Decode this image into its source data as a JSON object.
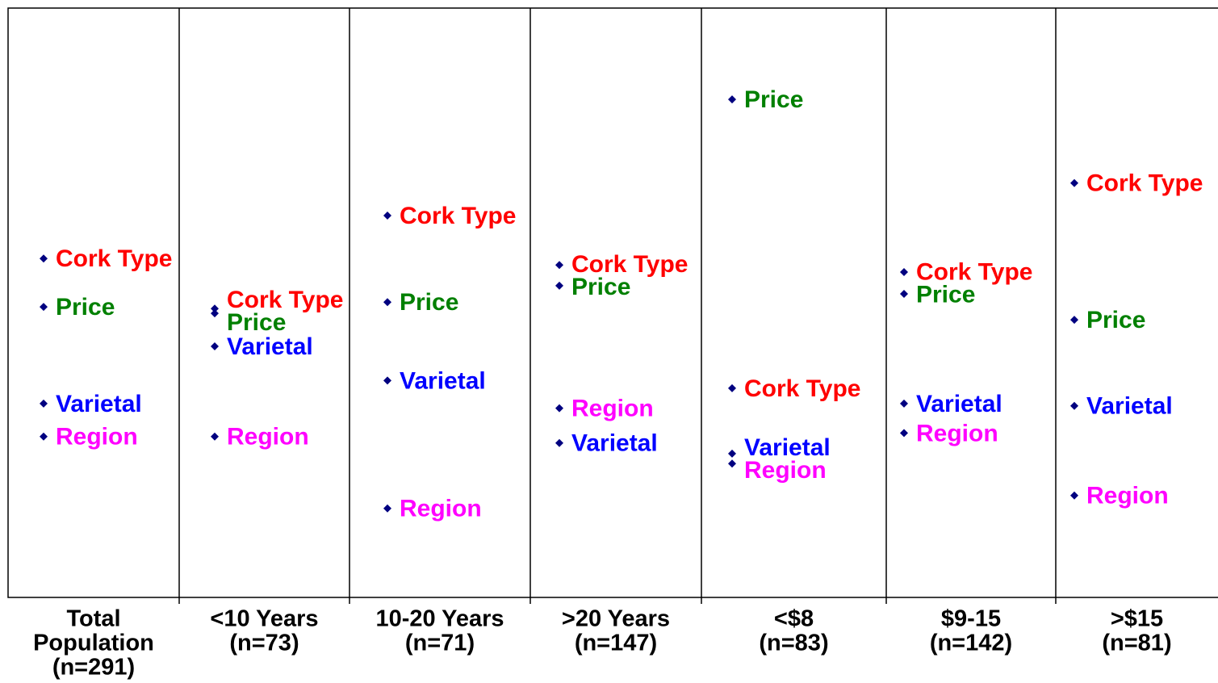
{
  "chart_data": {
    "type": "dot",
    "categories": [
      [
        "Total",
        "Population",
        "(n=291)"
      ],
      [
        "<10 Years",
        "(n=73)"
      ],
      [
        "10-20 Years",
        "(n=71)"
      ],
      [
        ">20 Years",
        "(n=147)"
      ],
      [
        "<$8",
        "(n=83)"
      ],
      [
        "$9-15",
        "(n=142)"
      ],
      [
        ">$15",
        "(n=81)"
      ]
    ],
    "series": [
      {
        "name": "Cork Type",
        "color": "#ff0000",
        "values": [
          57.5,
          49.0,
          64.8,
          56.4,
          35.5,
          55.2,
          70.3
        ]
      },
      {
        "name": "Price",
        "color": "#008000",
        "values": [
          49.3,
          48.2,
          50.1,
          52.9,
          84.5,
          51.5,
          47.1
        ]
      },
      {
        "name": "Varietal",
        "color": "#0000ff",
        "values": [
          32.9,
          42.6,
          36.8,
          26.2,
          24.4,
          32.9,
          32.5
        ]
      },
      {
        "name": "Region",
        "color": "#ff00ff",
        "values": [
          27.3,
          27.3,
          15.1,
          32.1,
          22.7,
          27.9,
          17.3
        ]
      }
    ],
    "marker_color": "#000080",
    "ylim": [
      0,
      100
    ]
  }
}
